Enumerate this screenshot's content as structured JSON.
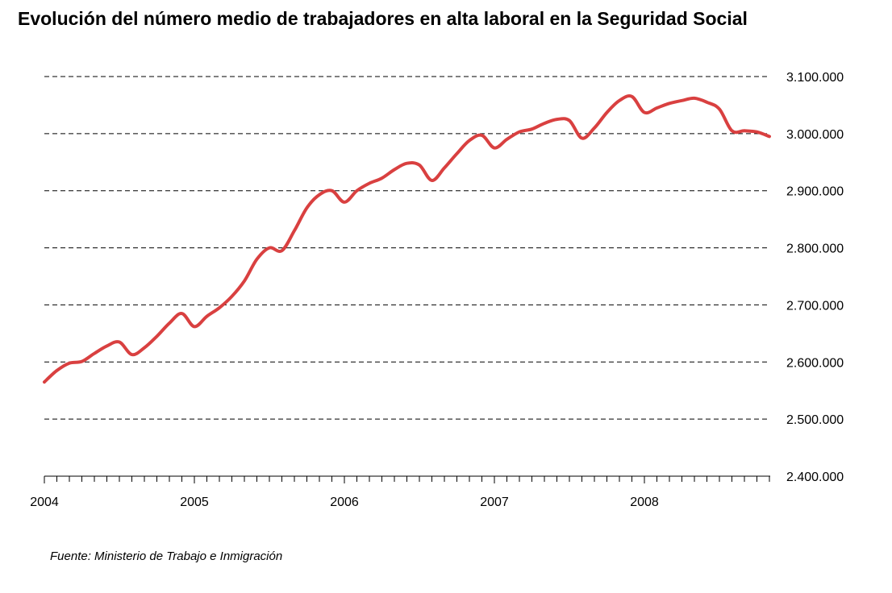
{
  "title": "Evolución del número medio de trabajadores en alta laboral en la Seguridad Social",
  "source": "Fuente: Ministerio de Trabajo e Inmigración",
  "colors": {
    "series": "#d94040",
    "grid": "#000000",
    "axis": "#000000"
  },
  "chart_data": {
    "type": "line",
    "title": "Evolución del número medio de trabajadores en alta laboral en la Seguridad Social",
    "xlabel": "",
    "ylabel": "",
    "ylim": [
      2400000,
      3100000
    ],
    "yticks": [
      2400000,
      2500000,
      2600000,
      2700000,
      2800000,
      2900000,
      3000000,
      3100000
    ],
    "ytick_labels": [
      "2.400.000",
      "2.500.000",
      "2.600.000",
      "2.700.000",
      "2.800.000",
      "2.900.000",
      "3.000.000",
      "3.100.000"
    ],
    "y_axis_position": "right",
    "xticks": [
      "2004",
      "2005",
      "2006",
      "2007",
      "2008"
    ],
    "grid": "horizontal dashed",
    "legend": "none",
    "series": [
      {
        "values": [
          2565000,
          2585000,
          2598000,
          2601000,
          2615000,
          2628000,
          2635000,
          2613000,
          2625000,
          2645000,
          2668000,
          2685000,
          2662000,
          2680000,
          2695000,
          2715000,
          2742000,
          2780000,
          2800000,
          2795000,
          2830000,
          2870000,
          2893000,
          2900000,
          2880000,
          2900000,
          2913000,
          2922000,
          2937000,
          2948000,
          2945000,
          2918000,
          2940000,
          2965000,
          2988000,
          2997000,
          2975000,
          2990000,
          3003000,
          3008000,
          3018000,
          3025000,
          3023000,
          2992000,
          3010000,
          3037000,
          3058000,
          3065000,
          3037000,
          3045000,
          3053000,
          3058000,
          3062000,
          3055000,
          3043000,
          3005000,
          3005000,
          3003000,
          2995000
        ]
      }
    ],
    "x_start": "2004-01",
    "x_frequency": "monthly"
  }
}
